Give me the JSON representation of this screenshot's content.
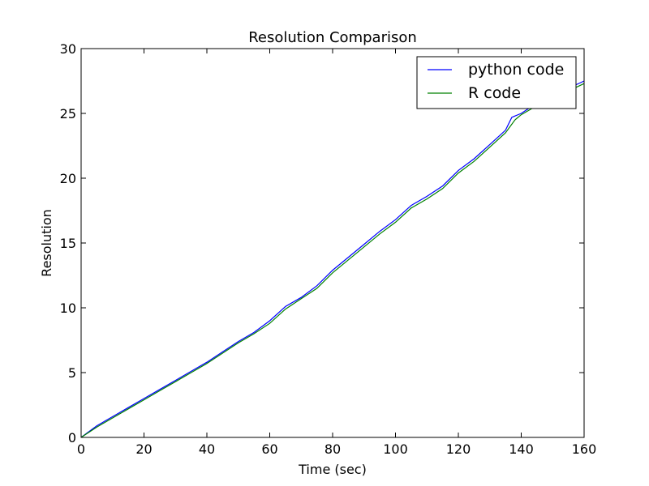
{
  "chart_data": {
    "type": "line",
    "title": "Resolution Comparison",
    "xlabel": "Time (sec)",
    "ylabel": "Resolution",
    "xlim": [
      0,
      160
    ],
    "ylim": [
      0,
      30
    ],
    "xticks": [
      0,
      20,
      40,
      60,
      80,
      100,
      120,
      140,
      160
    ],
    "yticks": [
      0,
      5,
      10,
      15,
      20,
      25,
      30
    ],
    "grid": false,
    "legend_position": "top-right",
    "series": [
      {
        "name": "python code",
        "color": "#0000ff",
        "x": [
          0,
          5,
          10,
          15,
          20,
          25,
          30,
          35,
          40,
          45,
          50,
          55,
          60,
          65,
          70,
          75,
          80,
          85,
          90,
          95,
          100,
          105,
          110,
          115,
          120,
          125,
          130,
          135,
          137,
          140,
          145,
          160
        ],
        "y": [
          0,
          0.9,
          1.6,
          2.3,
          3.0,
          3.7,
          4.4,
          5.1,
          5.8,
          6.6,
          7.4,
          8.1,
          9.0,
          10.1,
          10.8,
          11.7,
          12.9,
          13.9,
          14.9,
          15.9,
          16.8,
          17.9,
          18.6,
          19.4,
          20.6,
          21.5,
          22.6,
          23.7,
          24.7,
          25.0,
          25.8,
          27.5
        ]
      },
      {
        "name": "R code",
        "color": "#008000",
        "x": [
          0,
          5,
          10,
          15,
          20,
          25,
          30,
          35,
          40,
          45,
          50,
          55,
          60,
          65,
          70,
          75,
          80,
          85,
          90,
          95,
          100,
          105,
          110,
          115,
          120,
          125,
          130,
          135,
          138,
          140,
          145,
          160
        ],
        "y": [
          0,
          0.8,
          1.5,
          2.2,
          2.9,
          3.6,
          4.3,
          5.0,
          5.7,
          6.5,
          7.3,
          8.0,
          8.8,
          9.9,
          10.7,
          11.5,
          12.7,
          13.7,
          14.7,
          15.7,
          16.6,
          17.7,
          18.4,
          19.2,
          20.4,
          21.3,
          22.4,
          23.5,
          24.5,
          24.9,
          25.6,
          27.3
        ]
      }
    ]
  }
}
